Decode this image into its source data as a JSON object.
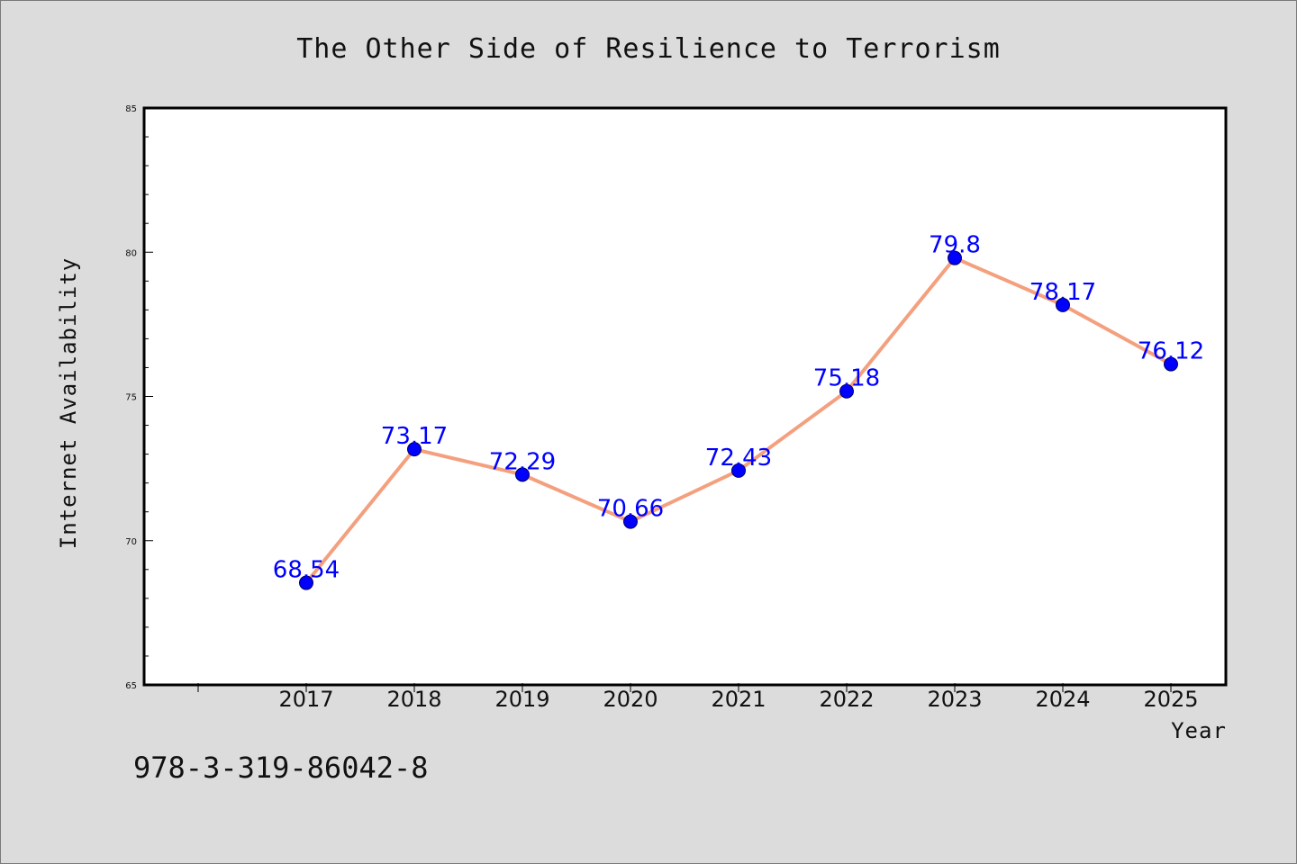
{
  "chart_data": {
    "type": "line",
    "title": "The Other Side of Resilience to Terrorism",
    "xlabel": "Year",
    "ylabel": "Internet Availability",
    "categories": [
      "2017",
      "2018",
      "2019",
      "2020",
      "2021",
      "2022",
      "2023",
      "2024",
      "2025"
    ],
    "series": [
      {
        "values": [
          68.54,
          73.17,
          72.29,
          70.66,
          72.43,
          75.18,
          79.8,
          78.17,
          76.12
        ],
        "labels": [
          "68.54",
          "73.17",
          "72.29",
          "70.66",
          "72.43",
          "75.18",
          "79.8",
          "78.17",
          "76.12"
        ],
        "line_color": "#f4a07e",
        "marker_color": "#0000ff"
      }
    ],
    "ylim": [
      65,
      85
    ],
    "yticks": [
      "65",
      "70",
      "75",
      "80",
      "85"
    ],
    "grid": false,
    "legend": "none"
  },
  "footer": {
    "isbn": "978-3-319-86042-8"
  },
  "colors": {
    "background": "#dcdcdc",
    "plot_background": "#ffffff",
    "data_label": "#0000ff"
  }
}
